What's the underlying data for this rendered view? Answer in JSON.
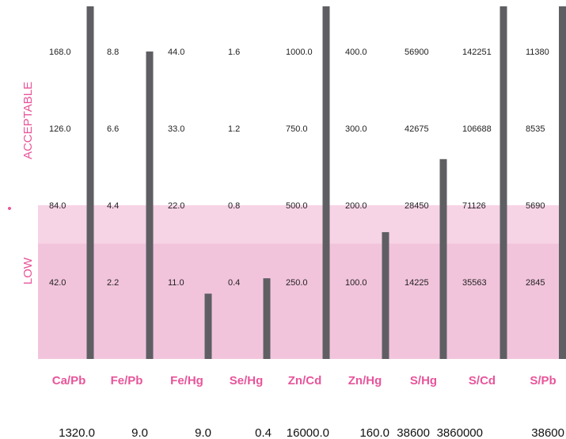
{
  "chart_data": {
    "type": "bar",
    "title": "",
    "xlabel": "",
    "ylabel": "",
    "zones": [
      {
        "label": "ACCEPTABLE"
      },
      {
        "label": "LOW"
      }
    ],
    "zone_marker": "•",
    "categories": [
      "Ca/Pb",
      "Fe/Pb",
      "Fe/Hg",
      "Se/Hg",
      "Zn/Cd",
      "Zn/Hg",
      "S/Hg",
      "S/Cd",
      "S/Pb"
    ],
    "value_labels": [
      "1320.0",
      "9.0",
      "9.0",
      "0.4",
      "16000.0",
      "160.0",
      "38600",
      "3860000",
      "38600"
    ],
    "tick_labels": [
      [
        "42.0",
        "84.0",
        "126.0",
        "168.0"
      ],
      [
        "2.2",
        "4.4",
        "6.6",
        "8.8"
      ],
      [
        "11.0",
        "22.0",
        "33.0",
        "44.0"
      ],
      [
        "0.4",
        "0.8",
        "1.2",
        "1.6"
      ],
      [
        "250.0",
        "500.0",
        "750.0",
        "1000.0"
      ],
      [
        "100.0",
        "200.0",
        "300.0",
        "400.0"
      ],
      [
        "14225",
        "28450",
        "42675",
        "56900"
      ],
      [
        "35563",
        "71126",
        "106688",
        "142251"
      ],
      [
        "2845",
        "5690",
        "8535",
        "11380"
      ]
    ],
    "tick_values": [
      [
        42,
        84,
        126,
        168
      ],
      [
        2.2,
        4.4,
        6.6,
        8.8
      ],
      [
        11,
        22,
        33,
        44
      ],
      [
        0.4,
        0.8,
        1.2,
        1.6
      ],
      [
        250,
        500,
        750,
        1000
      ],
      [
        100,
        200,
        300,
        400
      ],
      [
        14225,
        28450,
        42675,
        56900
      ],
      [
        35563,
        71126,
        106688,
        142251
      ],
      [
        2845,
        5690,
        8535,
        11380
      ]
    ],
    "values": [
      1320,
      9,
      9,
      0.4,
      16000,
      160,
      38600,
      3860000,
      38600
    ],
    "bar_level_in_ticks": [
      4.8,
      4.0,
      0.85,
      1.05,
      4.8,
      1.65,
      2.6,
      4.8,
      4.8
    ],
    "low_zone_top_tick": 2,
    "low_zone_inner_tick": 1.5,
    "colors": {
      "bar": "#5f5f63",
      "low_zone": "#f7d3e6",
      "low_zone_inner": "#f2c4dc",
      "accent": "#e8559a"
    }
  }
}
